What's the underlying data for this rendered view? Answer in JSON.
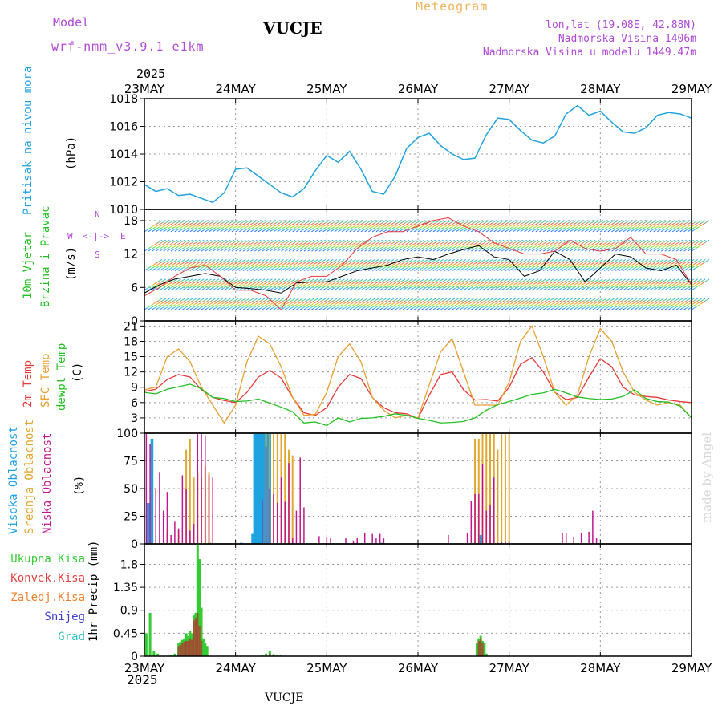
{
  "header": {
    "model_label": "Model",
    "model_name": "wrf-nmm_v3.9.1 e1km",
    "title": "VUCJE",
    "meteogram": "Meteogram",
    "lonlat": "lon,lat (19.08E, 42.88N)",
    "altitude": "Nadmorska Visina 1406m",
    "altitude_model": "Nadmorska Visina u modelu 1449.47m",
    "year_top": "2025",
    "year_bottom": "2025",
    "footer_station": "VUCJE",
    "credit": "made by Angel",
    "wind_compass": [
      "N",
      "S",
      "W",
      "E"
    ]
  },
  "colors": {
    "pressure": "#1fa3e0",
    "wind_label": "#22c022",
    "temp2m": "#e83838",
    "sfc": "#e8a030",
    "dew": "#22c022",
    "high_cloud": "#1fa3e0",
    "mid_cloud": "#e0a830",
    "low_cloud": "#c01890",
    "total_precip": "#33cc33",
    "conv_precip": "#e84040",
    "frz_precip": "#f08030",
    "snow": "#4040d0",
    "grad": "#33c0c0"
  },
  "chart_data": [
    {
      "type": "line",
      "panel": "pressure",
      "ylabel_lines": [
        "Pritisak na nivou mora",
        "(hPa)"
      ],
      "x_labels": [
        "23MAY",
        "24MAY",
        "25MAY",
        "26MAY",
        "27MAY",
        "28MAY",
        "29MAY"
      ],
      "x_range_hours": [
        0,
        144
      ],
      "ylim": [
        1010,
        1018
      ],
      "yticks": [
        "1010",
        "1012",
        "1014",
        "1016",
        "1018"
      ],
      "ytick_values": [
        1010,
        1012,
        1014,
        1016,
        1018
      ],
      "series": [
        {
          "name": "Pritisak na nivou mora",
          "x": [
            0,
            3,
            6,
            9,
            12,
            15,
            18,
            21,
            24,
            27,
            30,
            33,
            36,
            39,
            42,
            45,
            48,
            51,
            54,
            57,
            60,
            63,
            66,
            69,
            72,
            75,
            78,
            81,
            84,
            87,
            90,
            93,
            96,
            99,
            102,
            105,
            108,
            111,
            114,
            117,
            120,
            123,
            126,
            129,
            132,
            135,
            138,
            141,
            144
          ],
          "values": [
            1011.8,
            1011.3,
            1011.5,
            1011.0,
            1011.1,
            1010.8,
            1010.5,
            1011.2,
            1012.9,
            1013.0,
            1012.4,
            1011.8,
            1011.2,
            1010.9,
            1011.5,
            1012.8,
            1013.9,
            1013.4,
            1014.2,
            1012.9,
            1011.3,
            1011.1,
            1012.4,
            1014.4,
            1015.2,
            1015.5,
            1014.6,
            1014.0,
            1013.6,
            1013.7,
            1015.4,
            1016.6,
            1016.5,
            1015.7,
            1015.0,
            1014.8,
            1015.3,
            1016.9,
            1017.5,
            1016.8,
            1017.1,
            1016.3,
            1015.6,
            1015.5,
            1015.9,
            1016.8,
            1017.0,
            1016.9,
            1016.6
          ]
        }
      ]
    },
    {
      "type": "line",
      "panel": "wind",
      "ylabel_lines": [
        "10m Vjetar",
        "Brzina i Pravac",
        "(m/s)"
      ],
      "x_range_hours": [
        0,
        144
      ],
      "ylim": [
        0,
        20
      ],
      "yticks": [
        "0",
        "6",
        "12",
        "18"
      ],
      "ytick_values": [
        0,
        6,
        12,
        18
      ],
      "series": [
        {
          "name": "Brzina",
          "x": [
            0,
            4,
            8,
            12,
            16,
            20,
            24,
            28,
            32,
            36,
            40,
            44,
            48,
            52,
            56,
            60,
            64,
            68,
            72,
            76,
            80,
            84,
            88,
            92,
            96,
            100,
            104,
            108,
            112,
            116,
            120,
            124,
            128,
            132,
            136,
            140,
            144
          ],
          "values": [
            5,
            6.5,
            7.5,
            8,
            8.5,
            8,
            6,
            5.8,
            5.5,
            5,
            6.8,
            7,
            7,
            8,
            9,
            9.5,
            10,
            11,
            11.5,
            11,
            12,
            12.8,
            13.5,
            11.5,
            11,
            8,
            9,
            12.5,
            11,
            7,
            9.5,
            12,
            11.5,
            9.5,
            9,
            10,
            6.5
          ]
        },
        {
          "name": "Udari",
          "x": [
            0,
            4,
            8,
            12,
            16,
            20,
            24,
            28,
            32,
            36,
            40,
            44,
            48,
            52,
            56,
            60,
            64,
            68,
            72,
            76,
            80,
            84,
            88,
            92,
            96,
            100,
            104,
            108,
            112,
            116,
            120,
            124,
            128,
            132,
            136,
            140,
            144
          ],
          "values": [
            4.5,
            6,
            8,
            9.5,
            10,
            8,
            5.5,
            5.5,
            4.5,
            2,
            7,
            8,
            8,
            10,
            13,
            15,
            16,
            16,
            17,
            18,
            18.5,
            17,
            16,
            14,
            13,
            12,
            12,
            12.5,
            14.5,
            13,
            12.5,
            13,
            15,
            12,
            12,
            11,
            6.5
          ]
        }
      ]
    },
    {
      "type": "line",
      "panel": "temperature",
      "ylabel_lines": [
        "2m Temp",
        "SFC Temp",
        "dewpt Temp",
        "(C)"
      ],
      "x_range_hours": [
        0,
        144
      ],
      "ylim": [
        0,
        22
      ],
      "yticks": [
        "0",
        "3",
        "6",
        "9",
        "12",
        "15",
        "18",
        "21"
      ],
      "ytick_values": [
        0,
        3,
        6,
        9,
        12,
        15,
        18,
        21
      ],
      "series": [
        {
          "name": "2m Temp",
          "x": [
            0,
            3,
            6,
            9,
            12,
            15,
            18,
            21,
            24,
            27,
            30,
            33,
            36,
            39,
            42,
            45,
            48,
            51,
            54,
            57,
            60,
            63,
            66,
            69,
            72,
            75,
            78,
            81,
            84,
            87,
            90,
            93,
            96,
            99,
            102,
            105,
            108,
            111,
            114,
            117,
            120,
            123,
            126,
            129,
            132,
            135,
            138,
            141,
            144
          ],
          "values": [
            8.2,
            8.6,
            10.5,
            11.5,
            11,
            8.5,
            7,
            6.4,
            6,
            8,
            11,
            12.3,
            10.8,
            7,
            4,
            3.5,
            5,
            9,
            11.5,
            10.7,
            7,
            5,
            4,
            3.8,
            2.9,
            7.5,
            11.5,
            12,
            8.5,
            6.5,
            6.6,
            6.3,
            9,
            13.5,
            14.8,
            12,
            8,
            6.6,
            7,
            11,
            14.6,
            13,
            9,
            7.5,
            7.2,
            7,
            6.5,
            6.2,
            6.0
          ]
        },
        {
          "name": "SFC Temp",
          "x": [
            0,
            3,
            6,
            9,
            12,
            15,
            18,
            21,
            24,
            27,
            30,
            33,
            36,
            39,
            42,
            45,
            48,
            51,
            54,
            57,
            60,
            63,
            66,
            69,
            72,
            75,
            78,
            81,
            84,
            87,
            90,
            93,
            96,
            99,
            102,
            105,
            108,
            111,
            114,
            117,
            120,
            123,
            126,
            129,
            132,
            135,
            138,
            141,
            144
          ],
          "values": [
            8.5,
            9,
            15,
            16.5,
            14,
            9,
            5.5,
            2,
            5.5,
            14,
            19,
            17.5,
            13,
            7,
            3.5,
            3.7,
            8,
            15,
            17.5,
            14,
            7,
            4.5,
            3,
            3.5,
            3,
            9.5,
            16,
            18.5,
            12,
            5.5,
            5.5,
            5.5,
            10,
            18,
            21,
            15,
            8,
            5.5,
            7.5,
            15,
            20.5,
            18,
            12,
            8,
            6.5,
            5.5,
            6,
            5.5,
            3
          ]
        },
        {
          "name": "dewpt Temp",
          "x": [
            0,
            3,
            6,
            9,
            12,
            15,
            18,
            21,
            24,
            27,
            30,
            33,
            36,
            39,
            42,
            45,
            48,
            51,
            54,
            57,
            60,
            63,
            66,
            69,
            72,
            75,
            78,
            81,
            84,
            87,
            90,
            93,
            96,
            99,
            102,
            105,
            108,
            111,
            114,
            117,
            120,
            123,
            126,
            129,
            132,
            135,
            138,
            141,
            144
          ],
          "values": [
            8,
            7.7,
            8.6,
            9.1,
            9.6,
            8.7,
            7,
            6.8,
            6.2,
            6.3,
            6.7,
            5.9,
            5.1,
            4.2,
            2,
            2.2,
            1.5,
            3,
            2.2,
            2.9,
            3,
            3.3,
            3.8,
            3.5,
            2.9,
            2.5,
            2,
            2.1,
            2.3,
            3,
            4.5,
            5.6,
            6.2,
            6.9,
            7.6,
            7.9,
            8.6,
            7.9,
            7.1,
            6.8,
            6.6,
            6.7,
            7.2,
            8.5,
            6.8,
            6.2,
            6.1,
            5.3,
            3
          ]
        }
      ]
    },
    {
      "type": "bar",
      "panel": "clouds",
      "ylabel_lines": [
        "Visoka Oblacnost",
        "Srednja Oblacnost",
        "Niska Oblacnost",
        "(%)"
      ],
      "x_range_hours": [
        0,
        144
      ],
      "ylim": [
        0,
        100
      ],
      "yticks": [
        "0",
        "25",
        "50",
        "75",
        "100"
      ],
      "ytick_values": [
        0,
        25,
        50,
        75,
        100
      ],
      "series": [
        {
          "name": "Visoka Oblacnost",
          "x": [
            1,
            2,
            25.5,
            28.5,
            29,
            29.5,
            30,
            30.5,
            31,
            31.5,
            32,
            32.5,
            33,
            62.5,
            88.5
          ],
          "values": [
            37,
            95,
            1,
            9,
            100,
            100,
            100,
            100,
            100,
            100,
            100,
            100,
            100,
            1,
            8
          ]
        },
        {
          "name": "Srednja Oblacnost",
          "x": [
            6,
            9,
            11,
            12,
            13,
            14,
            15,
            16,
            17,
            17.5,
            18,
            32,
            33,
            34,
            35,
            36,
            37,
            38,
            39,
            87,
            88,
            89,
            90,
            91,
            92,
            93,
            94,
            95,
            96
          ],
          "values": [
            11,
            12,
            85,
            95,
            60,
            65,
            60,
            70,
            65,
            1,
            1,
            100,
            100,
            100,
            100,
            100,
            100,
            85,
            80,
            95,
            95,
            100,
            100,
            100,
            100,
            85,
            100,
            100,
            100
          ]
        },
        {
          "name": "Niska Oblacnost",
          "x": [
            0.5,
            1.5,
            3,
            4,
            5,
            6,
            7,
            8,
            9,
            10,
            11,
            12,
            13,
            14,
            15,
            16,
            17,
            18,
            31,
            32,
            33,
            34,
            35,
            36,
            37,
            38,
            39,
            40,
            41,
            42,
            46,
            48,
            49,
            53,
            55,
            56,
            58,
            60,
            61,
            62,
            63,
            80,
            85,
            86,
            87,
            88,
            89,
            90,
            91,
            92,
            93,
            94,
            95,
            96,
            97,
            98,
            99,
            100,
            101,
            102,
            103,
            104,
            105,
            110,
            111,
            113,
            115,
            117,
            118,
            119
          ],
          "values": [
            100,
            90,
            50,
            65,
            30,
            47,
            8,
            20,
            14,
            62,
            50,
            12,
            18,
            100,
            100,
            98,
            62,
            60,
            40,
            88,
            50,
            45,
            37,
            60,
            38,
            73,
            5,
            30,
            78,
            33,
            7,
            6,
            5,
            5,
            3,
            5,
            10,
            9,
            5,
            9,
            5,
            8,
            10,
            39,
            45,
            45,
            72,
            30,
            35,
            60,
            0,
            2,
            2,
            2,
            0,
            0,
            0,
            0,
            0,
            0,
            0,
            0,
            0,
            10,
            10,
            6,
            10,
            11,
            30,
            5
          ]
        }
      ]
    },
    {
      "type": "bar",
      "panel": "precipitation",
      "ylabel_lines": [
        "1hr Precip (mm)"
      ],
      "legend": [
        "Ukupna Kisa",
        "Konvek.Kisa",
        "Zaledj.Kisa",
        "Snijeg",
        "Grad"
      ],
      "x_range_hours": [
        0,
        144
      ],
      "ylim": [
        0,
        2.2
      ],
      "yticks": [
        "0",
        "0.45",
        "0.9",
        "1.35",
        "1.8"
      ],
      "ytick_values": [
        0,
        0.45,
        0.9,
        1.35,
        1.8
      ],
      "series": [
        {
          "name": "Ukupna Kisa",
          "x": [
            0.5,
            1.5,
            2.5,
            3.5,
            7,
            8,
            9,
            9.5,
            10,
            10.5,
            11,
            11.5,
            12,
            12.5,
            13,
            13.5,
            14,
            14.5,
            15,
            15.5,
            16,
            16.5,
            31,
            32,
            33,
            34,
            35,
            36,
            37,
            87.5,
            88,
            88.5,
            89,
            89.5,
            90
          ],
          "values": [
            0.45,
            0.85,
            0.1,
            0.05,
            0.03,
            0.05,
            0.25,
            0.28,
            0.32,
            0.35,
            0.45,
            0.4,
            0.5,
            0.45,
            0.8,
            0.85,
            2.2,
            1.9,
            0.95,
            0.35,
            0.25,
            0.2,
            0.03,
            0.05,
            0.1,
            0.04,
            0.02,
            0.02,
            0.01,
            0.25,
            0.35,
            0.4,
            0.3,
            0.25,
            0.05
          ]
        },
        {
          "name": "Konvek.Kisa",
          "x": [
            9,
            9.5,
            10,
            10.5,
            11,
            11.5,
            12,
            12.5,
            13,
            13.5,
            14,
            14.5,
            15,
            33,
            88,
            88.5,
            89
          ],
          "values": [
            0.2,
            0.22,
            0.25,
            0.28,
            0.3,
            0.3,
            0.35,
            0.32,
            0.7,
            0.75,
            0.85,
            0.6,
            0.3,
            0.05,
            0.3,
            0.35,
            0.25
          ]
        }
      ]
    }
  ]
}
